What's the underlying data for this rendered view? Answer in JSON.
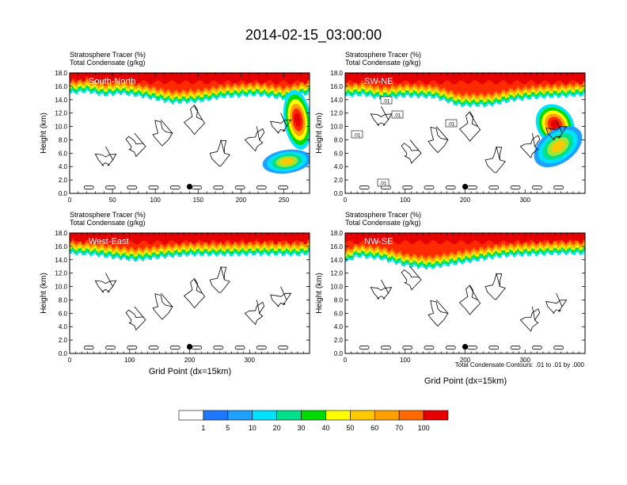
{
  "title": "2014-02-15_03:00:00",
  "header_line1": "Stratosphere Tracer   (%)",
  "header_line2": "Total Condensate   (g/kg)",
  "ylabel": "Height (km)",
  "xlabel": "Grid Point (dx=15km)",
  "contour_note": "Total Condensate Contours: .01 to .01 by .000",
  "colors": {
    "bins": [
      "#ffffff",
      "#1e78ff",
      "#1ea0ff",
      "#00e0ff",
      "#00e08a",
      "#00dc00",
      "#a0e632",
      "#ffff00",
      "#ffc800",
      "#ffa000",
      "#ff6a00",
      "#ff2a00",
      "#e60000"
    ],
    "contour": "#000000",
    "marker": "#000000"
  },
  "colorbar": {
    "labels": [
      "1",
      "5",
      "10",
      "20",
      "30",
      "40",
      "50",
      "60",
      "70",
      "100"
    ]
  },
  "chart_data": [
    {
      "type": "heatmap",
      "panel_label": "South-North",
      "ylim": [
        0,
        18
      ],
      "xlim": [
        0,
        280
      ],
      "yticks": [
        "0.0",
        "2.0",
        "4.0",
        "6.0",
        "8.0",
        "10.0",
        "12.0",
        "14.0",
        "16.0",
        "18.0"
      ],
      "xticks": [
        {
          "value": 0,
          "label": "0"
        },
        {
          "value": 50,
          "label": "50"
        },
        {
          "value": 100,
          "label": "100"
        },
        {
          "value": 150,
          "label": "150"
        },
        {
          "value": 200,
          "label": "200"
        },
        {
          "value": 250,
          "label": "250"
        }
      ],
      "tropopause_km": [
        [
          0,
          15.8
        ],
        [
          20,
          16.1
        ],
        [
          40,
          15.5
        ],
        [
          60,
          15.8
        ],
        [
          90,
          15.2
        ],
        [
          120,
          14.4
        ],
        [
          150,
          14.6
        ],
        [
          180,
          15.3
        ],
        [
          220,
          15.6
        ],
        [
          250,
          15.0
        ],
        [
          270,
          15.6
        ],
        [
          280,
          15.8
        ]
      ],
      "intrusions": [
        {
          "x0": 250,
          "x1": 282,
          "ybot": 6.5,
          "ytop": 15.5,
          "strength": 1.0
        },
        {
          "x0": 225,
          "x1": 282,
          "ybot": 3.0,
          "ytop": 6.5,
          "strength": 0.4
        }
      ],
      "contour_labels": [],
      "marker": {
        "x": 140,
        "y": 1.0
      }
    },
    {
      "type": "heatmap",
      "panel_label": "SW-NE",
      "ylim": [
        0,
        18
      ],
      "xlim": [
        0,
        400
      ],
      "yticks": [
        "0.0",
        "2.0",
        "4.0",
        "6.0",
        "8.0",
        "10.0",
        "12.0",
        "14.0",
        "16.0",
        "18.0"
      ],
      "xticks": [
        {
          "value": 0,
          "label": "0"
        },
        {
          "value": 100,
          "label": "100"
        },
        {
          "value": 200,
          "label": "200"
        },
        {
          "value": 300,
          "label": "300"
        }
      ],
      "tropopause_km": [
        [
          0,
          15.4
        ],
        [
          30,
          15.6
        ],
        [
          60,
          15.0
        ],
        [
          100,
          15.4
        ],
        [
          150,
          15.2
        ],
        [
          190,
          14.0
        ],
        [
          240,
          14.0
        ],
        [
          280,
          14.8
        ],
        [
          320,
          15.2
        ],
        [
          370,
          15.4
        ],
        [
          400,
          15.6
        ]
      ],
      "intrusions": [
        {
          "x0": 320,
          "x1": 380,
          "ybot": 7.0,
          "ytop": 13.5,
          "strength": 1.0
        },
        {
          "x0": 310,
          "x1": 400,
          "ybot": 4.5,
          "ytop": 9.5,
          "strength": 0.6
        }
      ],
      "contour_labels": [
        ".01",
        ".01",
        ".01",
        ".01",
        ".01"
      ],
      "marker": {
        "x": 200,
        "y": 1.0
      }
    },
    {
      "type": "heatmap",
      "panel_label": "West-East",
      "ylim": [
        0,
        18
      ],
      "xlim": [
        0,
        400
      ],
      "yticks": [
        "0.0",
        "2.0",
        "4.0",
        "6.0",
        "8.0",
        "10.0",
        "12.0",
        "14.0",
        "16.0",
        "18.0"
      ],
      "xticks": [
        {
          "value": 0,
          "label": "0"
        },
        {
          "value": 100,
          "label": "100"
        },
        {
          "value": 200,
          "label": "200"
        },
        {
          "value": 300,
          "label": "300"
        }
      ],
      "tropopause_km": [
        [
          0,
          15.8
        ],
        [
          40,
          15.6
        ],
        [
          70,
          15.2
        ],
        [
          110,
          14.8
        ],
        [
          160,
          15.3
        ],
        [
          200,
          15.6
        ],
        [
          260,
          15.6
        ],
        [
          320,
          15.7
        ],
        [
          380,
          15.6
        ],
        [
          400,
          15.8
        ]
      ],
      "intrusions": [],
      "contour_labels": [],
      "marker": {
        "x": 200,
        "y": 1.0
      }
    },
    {
      "type": "heatmap",
      "panel_label": "NW-SE",
      "ylim": [
        0,
        18
      ],
      "xlim": [
        0,
        400
      ],
      "yticks": [
        "0.0",
        "2.0",
        "4.0",
        "6.0",
        "8.0",
        "10.0",
        "12.0",
        "14.0",
        "16.0",
        "18.0"
      ],
      "xticks": [
        {
          "value": 0,
          "label": "0"
        },
        {
          "value": 100,
          "label": "100"
        },
        {
          "value": 200,
          "label": "200"
        },
        {
          "value": 300,
          "label": "300"
        }
      ],
      "tropopause_km": [
        [
          0,
          14.5
        ],
        [
          20,
          15.4
        ],
        [
          60,
          15.0
        ],
        [
          100,
          14.0
        ],
        [
          140,
          13.6
        ],
        [
          180,
          14.2
        ],
        [
          220,
          14.8
        ],
        [
          260,
          15.4
        ],
        [
          300,
          15.6
        ],
        [
          360,
          15.8
        ],
        [
          400,
          15.8
        ]
      ],
      "intrusions": [],
      "contour_labels": [],
      "marker": {
        "x": 200,
        "y": 1.0
      }
    }
  ]
}
